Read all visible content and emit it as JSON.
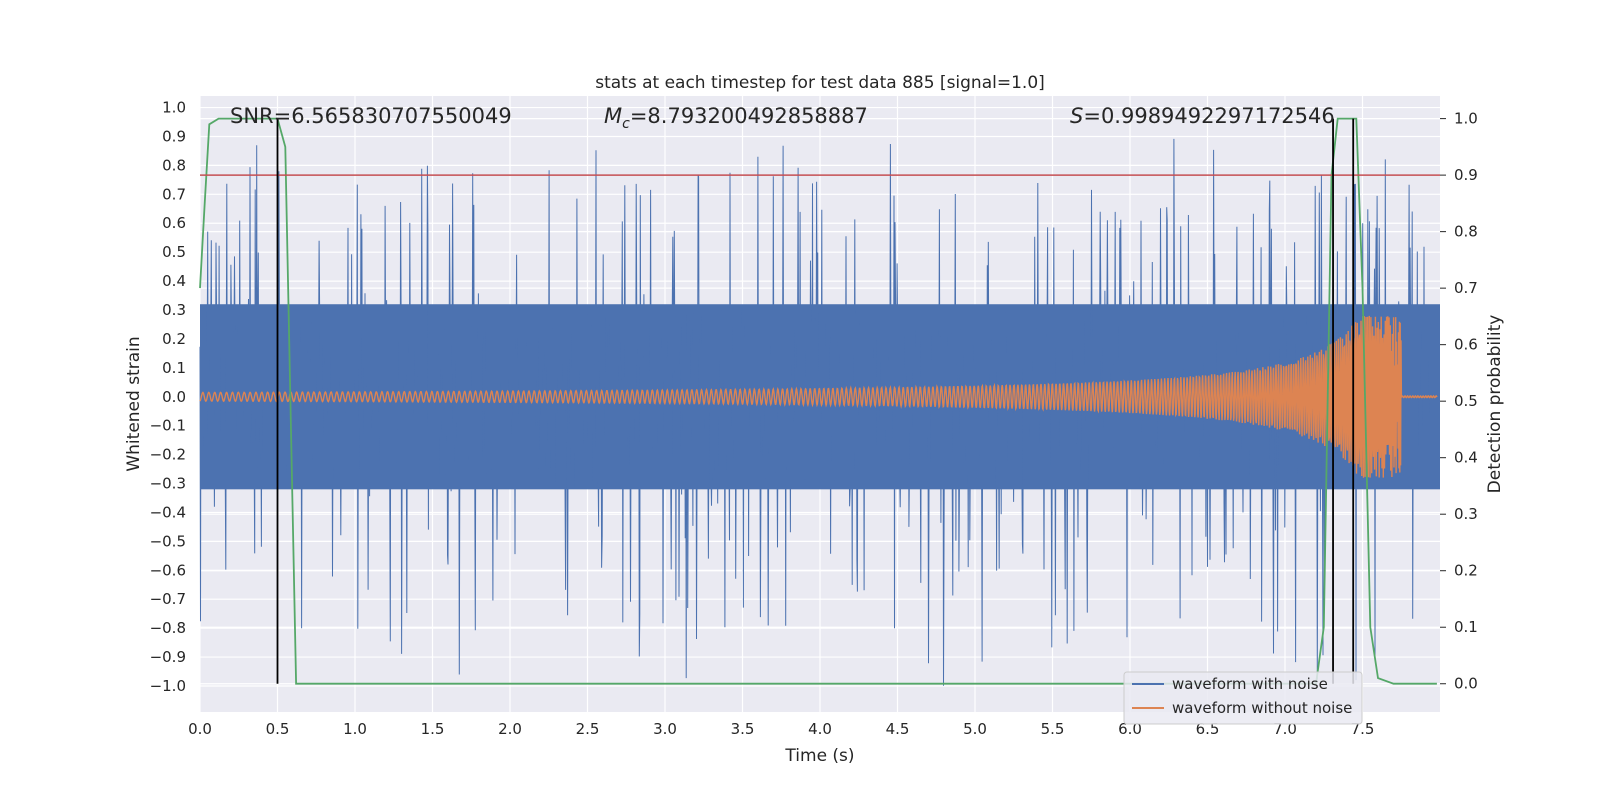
{
  "chart_data": {
    "type": "line",
    "title": "stats at each timestep for test data 885 [signal=1.0]",
    "xlabel": "Time (s)",
    "ylabel": "Whitened strain",
    "y2label": "Detection probability",
    "xlim": [
      0.0,
      8.0
    ],
    "ylim": [
      -1.09,
      1.04
    ],
    "y2lim": [
      -0.05,
      1.04
    ],
    "x_ticks": [
      "0.0",
      "0.5",
      "1.0",
      "1.5",
      "2.0",
      "2.5",
      "3.0",
      "3.5",
      "4.0",
      "4.5",
      "5.0",
      "5.5",
      "6.0",
      "6.5",
      "7.0",
      "7.5"
    ],
    "y_ticks": [
      "1.0",
      "0.9",
      "0.8",
      "0.7",
      "0.6",
      "0.5",
      "0.4",
      "0.3",
      "0.2",
      "0.1",
      "0.0",
      "−0.1",
      "−0.2",
      "−0.3",
      "−0.4",
      "−0.5",
      "−0.6",
      "−0.7",
      "−0.8",
      "−0.9",
      "−1.0"
    ],
    "y2_ticks": [
      "1.0",
      "0.9",
      "0.8",
      "0.7",
      "0.6",
      "0.5",
      "0.4",
      "0.3",
      "0.2",
      "0.1",
      "0.0"
    ],
    "annotations": {
      "snr": "SNR=6.565830707550049",
      "mc_symbol": "M",
      "mc_sub": "c",
      "mc_value": "=8.793200492858887",
      "s_symbol": "S",
      "s_value": "=0.9989492297172546"
    },
    "threshold": {
      "value": 0.9,
      "axis": "right",
      "color": "#c44e52"
    },
    "vlines": [
      0.5,
      7.31,
      7.44
    ],
    "series": [
      {
        "name": "waveform with noise",
        "color": "#4c72b0",
        "axis": "left",
        "envelope": 0.32,
        "peaks_up": [
          0.3,
          0.4,
          0.55,
          0.6,
          0.65,
          0.7,
          0.75,
          0.8,
          0.85,
          0.9
        ],
        "peaks_down": [
          -0.4,
          -0.5,
          -0.55,
          -0.6,
          -0.7,
          -0.8,
          -0.9,
          -1.0
        ]
      },
      {
        "name": "waveform without noise",
        "color": "#dd8452",
        "axis": "left",
        "chirp_start_amp": 0.015,
        "chirp_peak_amp": 0.28,
        "merger_time": 7.75
      },
      {
        "name": "detection probability",
        "color": "#55a868",
        "axis": "right",
        "x": [
          0.0,
          0.03,
          0.06,
          0.12,
          0.2,
          0.3,
          0.45,
          0.5,
          0.55,
          0.62,
          0.63,
          7.2,
          7.25,
          7.3,
          7.34,
          7.38,
          7.42,
          7.46,
          7.5,
          7.55,
          7.6,
          7.7,
          7.8,
          7.98
        ],
        "y": [
          0.7,
          0.85,
          0.99,
          1.0,
          1.0,
          1.0,
          1.0,
          1.0,
          0.95,
          0.0,
          0.0,
          0.0,
          0.1,
          0.9,
          1.0,
          1.0,
          1.0,
          1.0,
          0.7,
          0.1,
          0.01,
          0.0,
          0.0,
          0.0
        ]
      }
    ],
    "legend": {
      "placement": "lower-right",
      "entries": [
        "waveform with noise",
        "waveform without noise"
      ]
    }
  }
}
